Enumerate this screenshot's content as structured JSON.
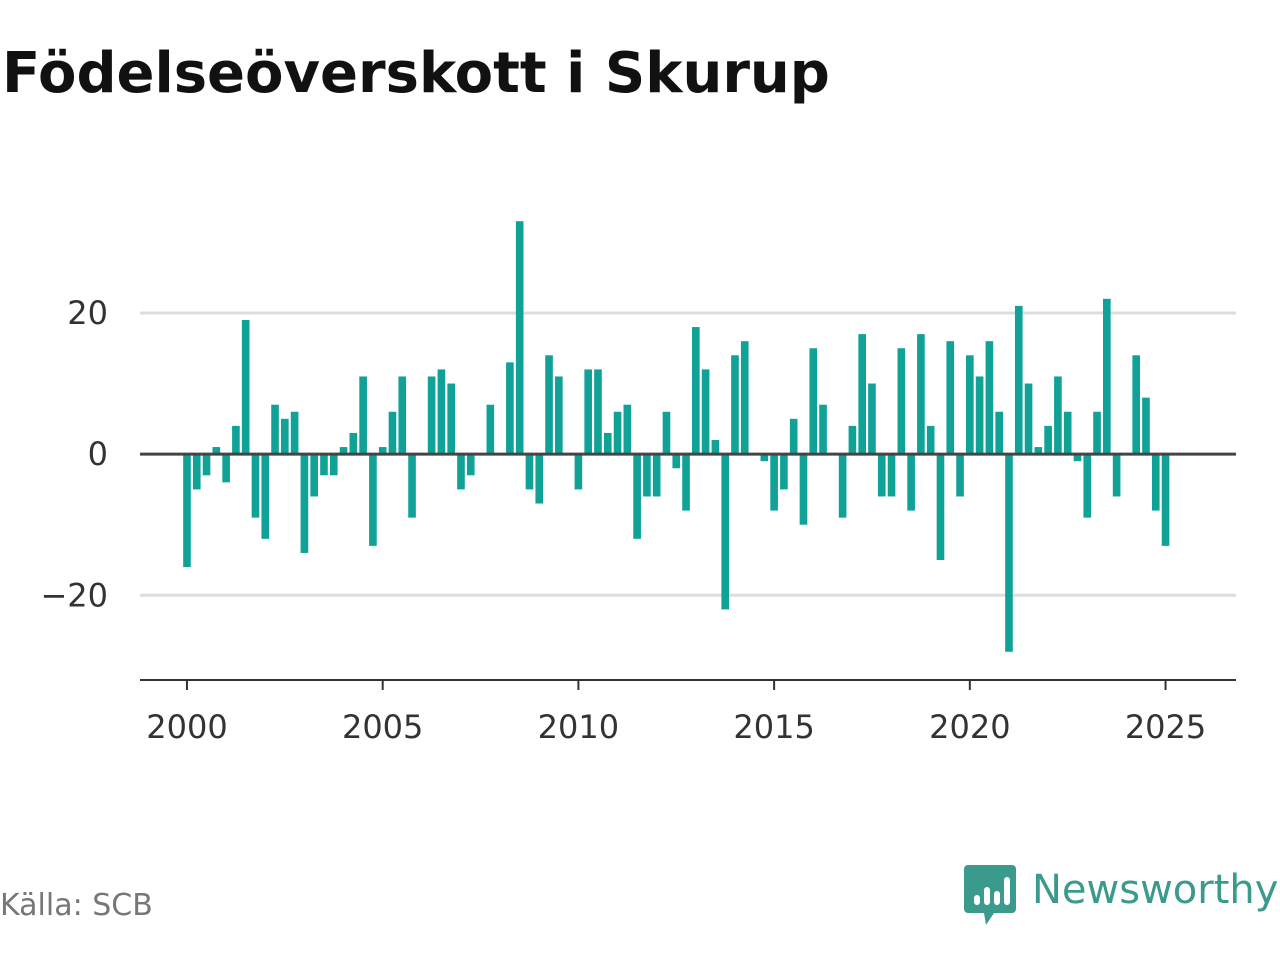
{
  "title": "Födelseöverskott i Skurup",
  "source": "Källa: SCB",
  "brand": {
    "name": "Newsworthy",
    "icon": "bar-chart-speech-bubble-icon",
    "color": "#3a9a8c"
  },
  "chart_data": {
    "type": "bar",
    "title": "Födelseöverskott i Skurup",
    "xlabel": "",
    "ylabel": "",
    "x_start": 2000,
    "interval": "quarter",
    "values": [
      -16,
      -5,
      -3,
      1,
      -4,
      4,
      19,
      -9,
      -12,
      7,
      5,
      6,
      -14,
      -6,
      -3,
      -3,
      1,
      3,
      11,
      -13,
      1,
      6,
      11,
      -9,
      0,
      11,
      12,
      10,
      -5,
      -3,
      0,
      7,
      0,
      13,
      33,
      -5,
      -7,
      14,
      11,
      0,
      -5,
      12,
      12,
      3,
      6,
      7,
      -12,
      -6,
      -6,
      6,
      -2,
      -8,
      18,
      12,
      2,
      -22,
      14,
      16,
      0,
      -1,
      -8,
      -5,
      5,
      -10,
      15,
      7,
      0,
      -9,
      4,
      17,
      10,
      -6,
      -6,
      15,
      -8,
      17,
      4,
      -15,
      16,
      -6,
      14,
      11,
      16,
      6,
      -28,
      21,
      10,
      1,
      4,
      11,
      6,
      -1,
      -9,
      6,
      22,
      -6,
      0,
      14,
      8,
      -8,
      -13
    ],
    "xticks": [
      2000,
      2005,
      2010,
      2015,
      2020,
      2025
    ],
    "xtick_labels": [
      "2000",
      "2005",
      "2010",
      "2015",
      "2020",
      "2025"
    ],
    "yticks": [
      -20,
      0,
      20
    ],
    "ytick_labels": [
      "−20",
      "0",
      "20"
    ],
    "xlim": [
      1998.8,
      2026.8
    ],
    "ylim": [
      -32,
      36
    ],
    "grid": true,
    "legend": "none",
    "bar_color": "#11a297",
    "grid_color": "#dddddd",
    "zero_line_color": "#444444",
    "axis_color": "#333333"
  }
}
